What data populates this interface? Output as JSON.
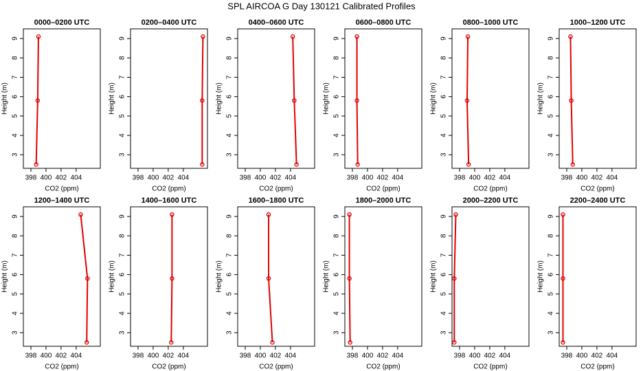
{
  "title": "SPL AIRCOA G  Day 130121  Calibrated Profiles",
  "chart_data": [
    {
      "type": "line",
      "title": "0000–0200 UTC",
      "xlabel": "CO2 (ppm)",
      "ylabel": "Height (m)",
      "color": "#e00000",
      "x": [
        398.7,
        398.9,
        399.0
      ],
      "values": [
        2.5,
        5.8,
        9.1
      ],
      "xlim": [
        397,
        407.2
      ],
      "ylim": [
        2.3,
        9.5
      ],
      "xticks": [
        398,
        400,
        402,
        404
      ],
      "yticks": [
        3,
        4,
        5,
        6,
        7,
        8,
        9
      ]
    },
    {
      "type": "line",
      "title": "0200–0400 UTC",
      "xlabel": "CO2 (ppm)",
      "ylabel": "Height (m)",
      "color": "#e00000",
      "x": [
        406.5,
        406.5,
        406.6
      ],
      "values": [
        2.5,
        5.8,
        9.1
      ],
      "xlim": [
        397,
        407.2
      ],
      "ylim": [
        2.3,
        9.5
      ],
      "xticks": [
        398,
        400,
        402,
        404
      ],
      "yticks": [
        3,
        4,
        5,
        6,
        7,
        8,
        9
      ]
    },
    {
      "type": "line",
      "title": "0400–0600 UTC",
      "xlabel": "CO2 (ppm)",
      "ylabel": "Height (m)",
      "color": "#e00000",
      "x": [
        404.8,
        404.5,
        404.3
      ],
      "values": [
        2.5,
        5.8,
        9.1
      ],
      "xlim": [
        397,
        407.2
      ],
      "ylim": [
        2.3,
        9.5
      ],
      "xticks": [
        398,
        400,
        402,
        404
      ],
      "yticks": [
        3,
        4,
        5,
        6,
        7,
        8,
        9
      ]
    },
    {
      "type": "line",
      "title": "0600–0800 UTC",
      "xlabel": "CO2 (ppm)",
      "ylabel": "Height (m)",
      "color": "#e00000",
      "x": [
        398.7,
        398.6,
        398.6
      ],
      "values": [
        2.5,
        5.8,
        9.1
      ],
      "xlim": [
        397,
        407.2
      ],
      "ylim": [
        2.3,
        9.5
      ],
      "xticks": [
        398,
        400,
        402,
        404
      ],
      "yticks": [
        3,
        4,
        5,
        6,
        7,
        8,
        9
      ]
    },
    {
      "type": "line",
      "title": "0800–1000 UTC",
      "xlabel": "CO2 (ppm)",
      "ylabel": "Height (m)",
      "color": "#e00000",
      "x": [
        399.2,
        399.0,
        399.1
      ],
      "values": [
        2.5,
        5.8,
        9.1
      ],
      "xlim": [
        397,
        407.2
      ],
      "ylim": [
        2.3,
        9.5
      ],
      "xticks": [
        398,
        400,
        402,
        404
      ],
      "yticks": [
        3,
        4,
        5,
        6,
        7,
        8,
        9
      ]
    },
    {
      "type": "line",
      "title": "1000–1200 UTC",
      "xlabel": "CO2 (ppm)",
      "ylabel": "Height (m)",
      "color": "#e00000",
      "x": [
        398.8,
        398.6,
        398.5
      ],
      "values": [
        2.5,
        5.8,
        9.1
      ],
      "xlim": [
        397,
        407.2
      ],
      "ylim": [
        2.3,
        9.5
      ],
      "xticks": [
        398,
        400,
        402,
        404
      ],
      "yticks": [
        3,
        4,
        5,
        6,
        7,
        8,
        9
      ]
    },
    {
      "type": "line",
      "title": "1200–1400 UTC",
      "xlabel": "CO2 (ppm)",
      "ylabel": "Height (m)",
      "color": "#e00000",
      "x": [
        405.4,
        405.5,
        404.6
      ],
      "values": [
        2.5,
        5.8,
        9.1
      ],
      "xlim": [
        397,
        407.2
      ],
      "ylim": [
        2.3,
        9.5
      ],
      "xticks": [
        398,
        400,
        402,
        404
      ],
      "yticks": [
        3,
        4,
        5,
        6,
        7,
        8,
        9
      ]
    },
    {
      "type": "line",
      "title": "1400–1600 UTC",
      "xlabel": "CO2 (ppm)",
      "ylabel": "Height (m)",
      "color": "#e00000",
      "x": [
        402.4,
        402.5,
        402.5
      ],
      "values": [
        2.5,
        5.8,
        9.1
      ],
      "xlim": [
        397,
        407.2
      ],
      "ylim": [
        2.3,
        9.5
      ],
      "xticks": [
        398,
        400,
        402,
        404
      ],
      "yticks": [
        3,
        4,
        5,
        6,
        7,
        8,
        9
      ]
    },
    {
      "type": "line",
      "title": "1600–1800 UTC",
      "xlabel": "CO2 (ppm)",
      "ylabel": "Height (m)",
      "color": "#e00000",
      "x": [
        401.6,
        401.1,
        401.1
      ],
      "values": [
        2.5,
        5.8,
        9.1
      ],
      "xlim": [
        397,
        407.2
      ],
      "ylim": [
        2.3,
        9.5
      ],
      "xticks": [
        398,
        400,
        402,
        404
      ],
      "yticks": [
        3,
        4,
        5,
        6,
        7,
        8,
        9
      ]
    },
    {
      "type": "line",
      "title": "1800–2000 UTC",
      "xlabel": "CO2 (ppm)",
      "ylabel": "Height (m)",
      "color": "#e00000",
      "x": [
        397.7,
        397.6,
        397.6
      ],
      "values": [
        2.5,
        5.8,
        9.1
      ],
      "xlim": [
        397,
        407.2
      ],
      "ylim": [
        2.3,
        9.5
      ],
      "xticks": [
        398,
        400,
        402,
        404
      ],
      "yticks": [
        3,
        4,
        5,
        6,
        7,
        8,
        9
      ]
    },
    {
      "type": "line",
      "title": "2000–2200 UTC",
      "xlabel": "CO2 (ppm)",
      "ylabel": "Height (m)",
      "color": "#e00000",
      "x": [
        397.3,
        397.3,
        397.5
      ],
      "values": [
        2.5,
        5.8,
        9.1
      ],
      "xlim": [
        397,
        407.2
      ],
      "ylim": [
        2.3,
        9.5
      ],
      "xticks": [
        398,
        400,
        402,
        404
      ],
      "yticks": [
        3,
        4,
        5,
        6,
        7,
        8,
        9
      ]
    },
    {
      "type": "line",
      "title": "2200–2400 UTC",
      "xlabel": "CO2 (ppm)",
      "ylabel": "Height (m)",
      "color": "#e00000",
      "x": [
        397.5,
        397.5,
        397.5
      ],
      "values": [
        2.5,
        5.8,
        9.1
      ],
      "xlim": [
        397,
        407.2
      ],
      "ylim": [
        2.3,
        9.5
      ],
      "xticks": [
        398,
        400,
        402,
        404
      ],
      "yticks": [
        3,
        4,
        5,
        6,
        7,
        8,
        9
      ]
    }
  ]
}
